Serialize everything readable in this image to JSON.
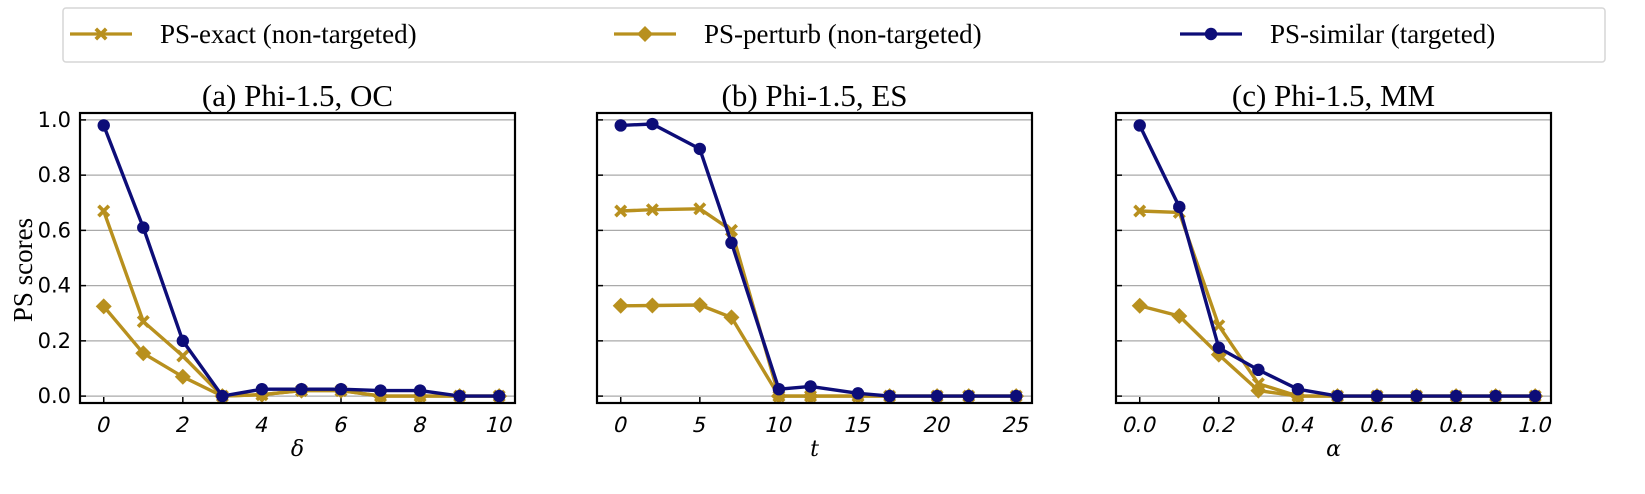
{
  "colors": {
    "gold": "#B8901E",
    "navy": "#0D0D78",
    "grid": "#AAAAAA",
    "frame": "#000000"
  },
  "legend": {
    "placement": "top",
    "items": [
      {
        "label": "PS-exact (non-targeted)",
        "marker": "x",
        "color": "#B8901E"
      },
      {
        "label": "PS-perturb (non-targeted)",
        "marker": "diamond",
        "color": "#B8901E"
      },
      {
        "label": "PS-similar (targeted)",
        "marker": "circle",
        "color": "#0D0D78"
      }
    ]
  },
  "ylabel": "PS scores",
  "chart_data": [
    {
      "type": "line",
      "title": "(a) Phi-1.5, OC",
      "xlabel": "δ",
      "xlim": [
        -0.6,
        10.4
      ],
      "ylim": [
        -0.025,
        1.025
      ],
      "xticks": [
        0,
        2,
        4,
        6,
        8,
        10
      ],
      "xtick_labels": [
        "0",
        "2",
        "4",
        "6",
        "8",
        "10"
      ],
      "yticks": [
        0.0,
        0.2,
        0.4,
        0.6,
        0.8,
        1.0
      ],
      "ytick_labels": [
        "0.0",
        "0.2",
        "0.4",
        "0.6",
        "0.8",
        "1.0"
      ],
      "grid": "horizontal",
      "x": [
        0,
        1,
        2,
        3,
        4,
        5,
        6,
        7,
        8,
        9,
        10
      ],
      "series": [
        {
          "name": "PS-exact (non-targeted)",
          "marker": "x",
          "values": [
            0.67,
            0.27,
            0.145,
            0.0,
            0.005,
            0.02,
            0.02,
            0.0,
            0.0,
            0.0,
            0.0
          ]
        },
        {
          "name": "PS-perturb (non-targeted)",
          "marker": "diamond",
          "values": [
            0.325,
            0.155,
            0.07,
            0.0,
            0.005,
            0.02,
            0.02,
            0.0,
            0.0,
            0.0,
            0.0
          ]
        },
        {
          "name": "PS-similar (targeted)",
          "marker": "circle",
          "values": [
            0.98,
            0.61,
            0.2,
            0.0,
            0.025,
            0.025,
            0.025,
            0.02,
            0.02,
            0.0,
            0.0
          ]
        }
      ]
    },
    {
      "type": "line",
      "title": "(b) Phi-1.5, ES",
      "xlabel": "t",
      "xlim": [
        -1.5,
        26
      ],
      "ylim": [
        -0.025,
        1.025
      ],
      "xticks": [
        0,
        5,
        10,
        15,
        20,
        25
      ],
      "xtick_labels": [
        "0",
        "5",
        "10",
        "15",
        "20",
        "25"
      ],
      "yticks": [
        0.0,
        0.2,
        0.4,
        0.6,
        0.8,
        1.0
      ],
      "ytick_labels": [
        "",
        "",
        "",
        "",
        "",
        ""
      ],
      "grid": "horizontal",
      "x": [
        0,
        2,
        5,
        7,
        10,
        12,
        15,
        17,
        20,
        22,
        25
      ],
      "series": [
        {
          "name": "PS-exact (non-targeted)",
          "marker": "x",
          "values": [
            0.67,
            0.675,
            0.678,
            0.6,
            0.0,
            0.0,
            0.0,
            0.0,
            0.0,
            0.0,
            0.0
          ]
        },
        {
          "name": "PS-perturb (non-targeted)",
          "marker": "diamond",
          "values": [
            0.327,
            0.328,
            0.33,
            0.285,
            0.0,
            0.0,
            0.0,
            0.0,
            0.0,
            0.0,
            0.0
          ]
        },
        {
          "name": "PS-similar (targeted)",
          "marker": "circle",
          "values": [
            0.98,
            0.985,
            0.895,
            0.555,
            0.025,
            0.035,
            0.01,
            0.0,
            0.0,
            0.0,
            0.0
          ]
        }
      ]
    },
    {
      "type": "line",
      "title": "(c) Phi-1.5, MM",
      "xlabel": "α",
      "xlim": [
        -0.06,
        1.04
      ],
      "ylim": [
        -0.025,
        1.025
      ],
      "xticks": [
        0.0,
        0.2,
        0.4,
        0.6,
        0.8,
        1.0
      ],
      "xtick_labels": [
        "0.0",
        "0.2",
        "0.4",
        "0.6",
        "0.8",
        "1.0"
      ],
      "yticks": [
        0.0,
        0.2,
        0.4,
        0.6,
        0.8,
        1.0
      ],
      "ytick_labels": [
        "",
        "",
        "",
        "",
        "",
        ""
      ],
      "grid": "horizontal",
      "x": [
        0.0,
        0.1,
        0.2,
        0.3,
        0.4,
        0.5,
        0.6,
        0.7,
        0.8,
        0.9,
        1.0
      ],
      "series": [
        {
          "name": "PS-exact (non-targeted)",
          "marker": "x",
          "values": [
            0.67,
            0.665,
            0.255,
            0.045,
            0.0,
            0.0,
            0.0,
            0.0,
            0.0,
            0.0,
            0.0
          ]
        },
        {
          "name": "PS-perturb (non-targeted)",
          "marker": "diamond",
          "values": [
            0.327,
            0.29,
            0.15,
            0.02,
            0.0,
            0.0,
            0.0,
            0.0,
            0.0,
            0.0,
            0.0
          ]
        },
        {
          "name": "PS-similar (targeted)",
          "marker": "circle",
          "values": [
            0.98,
            0.685,
            0.175,
            0.095,
            0.025,
            0.0,
            0.0,
            0.0,
            0.0,
            0.0,
            0.0
          ]
        }
      ]
    }
  ]
}
